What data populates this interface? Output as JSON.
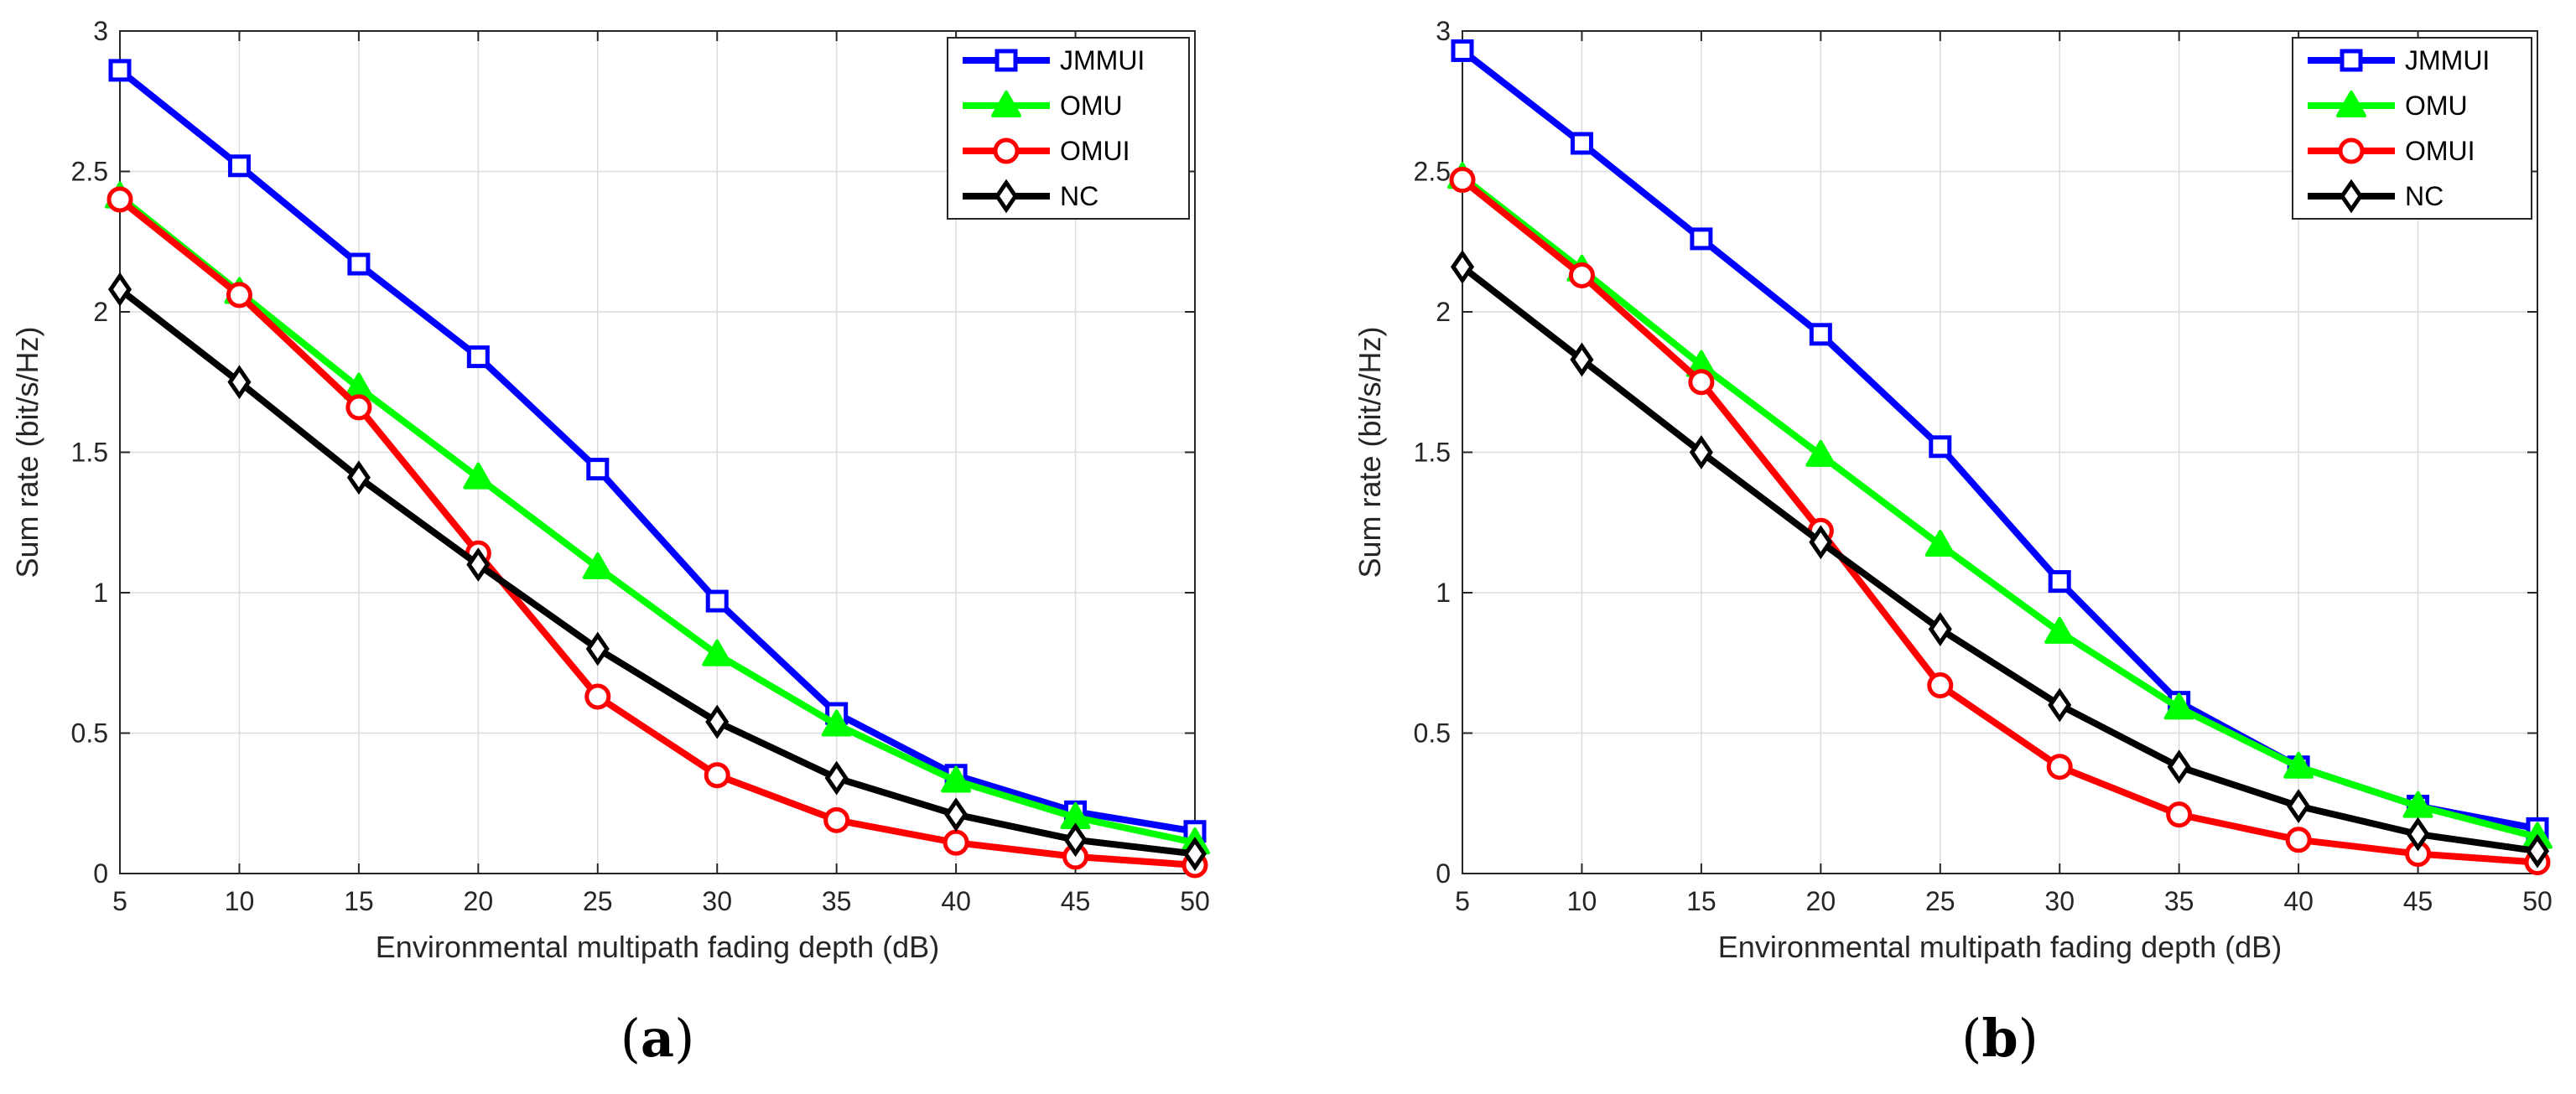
{
  "chart_data": [
    {
      "type": "line",
      "caption": "(a)",
      "caption_letter": "a",
      "xlabel": "Environmental multipath fading depth (dB)",
      "ylabel": "Sum rate (bit/s/Hz)",
      "xlim": [
        5,
        50
      ],
      "ylim": [
        0,
        3
      ],
      "x": [
        5,
        10,
        15,
        20,
        25,
        30,
        35,
        40,
        45,
        50
      ],
      "xticks": [
        "5",
        "10",
        "15",
        "20",
        "25",
        "30",
        "35",
        "40",
        "45",
        "50"
      ],
      "yticks": [
        "0",
        "0.5",
        "1",
        "1.5",
        "2",
        "2.5",
        "3"
      ],
      "grid": true,
      "legend_position": "top-right",
      "series": [
        {
          "name": "JMMUI",
          "color": "#0000ff",
          "marker": "square",
          "values": [
            2.86,
            2.52,
            2.17,
            1.84,
            1.44,
            0.97,
            0.57,
            0.35,
            0.22,
            0.15
          ]
        },
        {
          "name": "OMU",
          "color": "#00ff00",
          "marker": "triangle",
          "values": [
            2.41,
            2.07,
            1.73,
            1.41,
            1.09,
            0.78,
            0.53,
            0.33,
            0.2,
            0.11
          ]
        },
        {
          "name": "OMUI",
          "color": "#ff0000",
          "marker": "circle",
          "values": [
            2.4,
            2.06,
            1.66,
            1.14,
            0.63,
            0.35,
            0.19,
            0.11,
            0.06,
            0.03
          ]
        },
        {
          "name": "NC",
          "color": "#000000",
          "marker": "diamond",
          "values": [
            2.08,
            1.75,
            1.41,
            1.1,
            0.8,
            0.54,
            0.34,
            0.21,
            0.12,
            0.07
          ]
        }
      ]
    },
    {
      "type": "line",
      "caption": "(b)",
      "caption_letter": "b",
      "xlabel": "Environmental multipath fading depth (dB)",
      "ylabel": "Sum rate (bit/s/Hz)",
      "xlim": [
        5,
        50
      ],
      "ylim": [
        0,
        3
      ],
      "x": [
        5,
        10,
        15,
        20,
        25,
        30,
        35,
        40,
        45,
        50
      ],
      "xticks": [
        "5",
        "10",
        "15",
        "20",
        "25",
        "30",
        "35",
        "40",
        "45",
        "50"
      ],
      "yticks": [
        "0",
        "0.5",
        "1",
        "1.5",
        "2",
        "2.5",
        "3"
      ],
      "grid": true,
      "legend_position": "top-right",
      "series": [
        {
          "name": "JMMUI",
          "color": "#0000ff",
          "marker": "square",
          "values": [
            2.93,
            2.6,
            2.26,
            1.92,
            1.52,
            1.04,
            0.61,
            0.38,
            0.24,
            0.16
          ]
        },
        {
          "name": "OMU",
          "color": "#00ff00",
          "marker": "triangle",
          "values": [
            2.48,
            2.15,
            1.81,
            1.49,
            1.17,
            0.86,
            0.59,
            0.38,
            0.24,
            0.13
          ]
        },
        {
          "name": "OMUI",
          "color": "#ff0000",
          "marker": "circle",
          "values": [
            2.47,
            2.13,
            1.75,
            1.22,
            0.67,
            0.38,
            0.21,
            0.12,
            0.07,
            0.04
          ]
        },
        {
          "name": "NC",
          "color": "#000000",
          "marker": "diamond",
          "values": [
            2.16,
            1.83,
            1.5,
            1.18,
            0.87,
            0.6,
            0.38,
            0.24,
            0.14,
            0.08
          ]
        }
      ]
    }
  ]
}
